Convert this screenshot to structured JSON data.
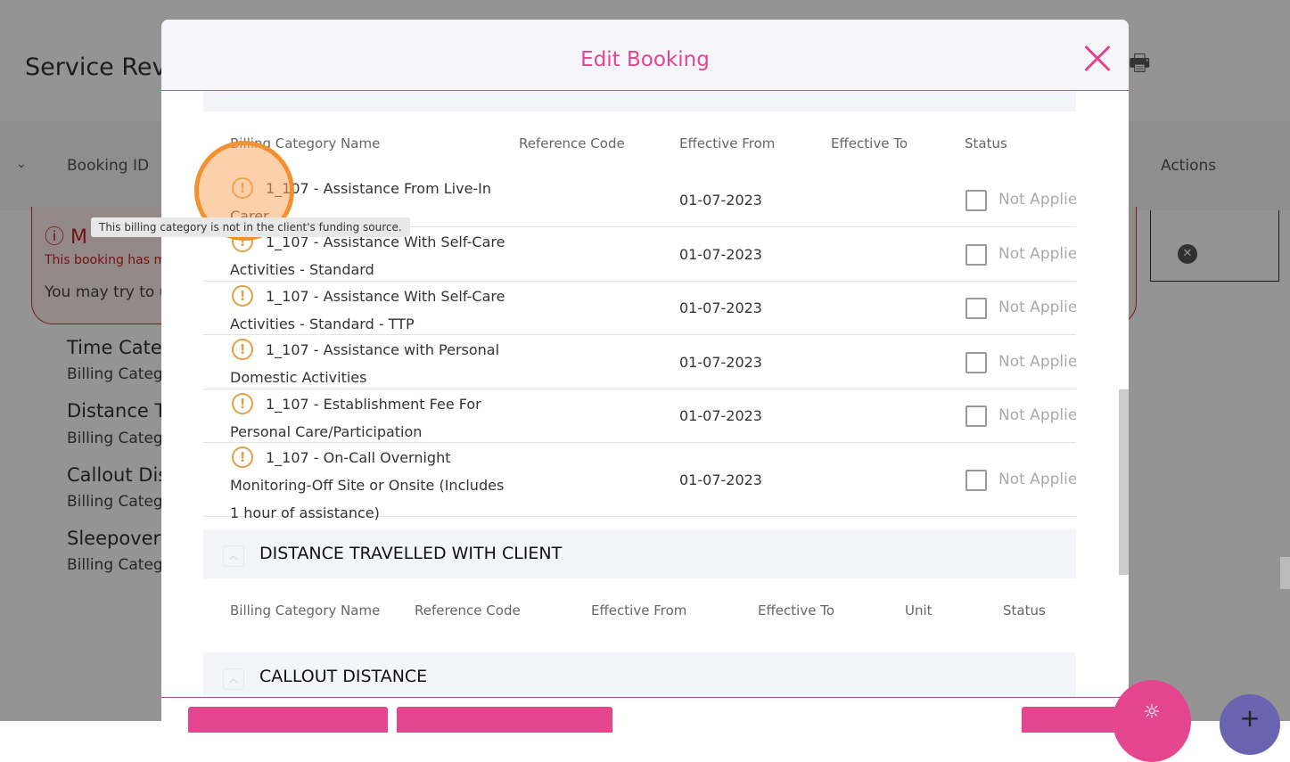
{
  "background": {
    "page_title": "Service Rev",
    "table_headers": {
      "booking_id": "Booking ID",
      "actions": "Actions"
    },
    "alert": {
      "title": "M",
      "subtitle": "This booking has m",
      "body": "You may try to u"
    },
    "items": [
      {
        "title": "Time Cate",
        "sub": "Billing Categ"
      },
      {
        "title": "Distance T",
        "sub": "Billing Categ"
      },
      {
        "title": "Callout Dis",
        "sub": "Billing Categ"
      },
      {
        "title": "Sleepover",
        "sub": "Billing Categ"
      }
    ]
  },
  "modal": {
    "title": "Edit Booking",
    "time_table": {
      "headers": [
        "Billing Category Name",
        "Reference Code",
        "Effective From",
        "Effective To",
        "Status"
      ],
      "rows": [
        {
          "name": "1_107 - Assistance From Live-In Carer",
          "effective_from": "01-07-2023",
          "status": "Not Applied"
        },
        {
          "name": "1_107 - Assistance With Self-Care Activities - Standard",
          "effective_from": "01-07-2023",
          "status": "Not Applied"
        },
        {
          "name": "1_107 - Assistance With Self-Care Activities - Standard - TTP",
          "effective_from": "01-07-2023",
          "status": "Not Applied"
        },
        {
          "name": "1_107 - Assistance with Personal Domestic Activities",
          "effective_from": "01-07-2023",
          "status": "Not Applied"
        },
        {
          "name": "1_107 - Establishment Fee For Personal Care/Participation",
          "effective_from": "01-07-2023",
          "status": "Not Applied"
        },
        {
          "name": "1_107 - On-Call Overnight Monitoring-Off Site or Onsite (Includes 1 hour of assistance)",
          "effective_from": "01-07-2023",
          "status": "Not Applied"
        }
      ]
    },
    "distance_section": {
      "label": "DISTANCE TRAVELLED WITH CLIENT",
      "headers": [
        "Billing Category Name",
        "Reference Code",
        "Effective From",
        "Effective To",
        "Unit",
        "Status"
      ]
    },
    "callout_section": {
      "label": "CALLOUT DISTANCE"
    }
  },
  "tooltip": "This billing category is not in the client's funding source.",
  "colors": {
    "accent": "#e0468f",
    "warning": "#e4a040",
    "fab_secondary": "#6a63b0"
  }
}
